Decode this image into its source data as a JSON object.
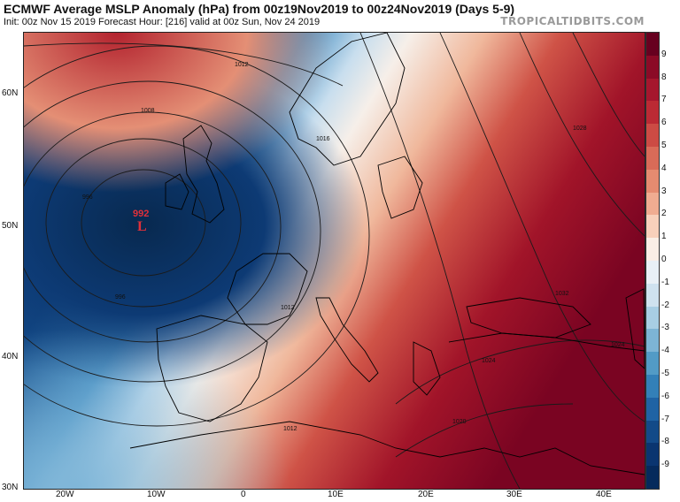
{
  "header": {
    "title": "ECMWF Average MSLP Anomaly (hPa) from 00z19Nov2019 to 00z24Nov2019 (Days 5-9)",
    "subtitle": "Init: 00z Nov 15 2019   Forecast Hour: [216]   valid at 00z Sun, Nov 24 2019",
    "brand": "TROPICALTIDBITS.COM"
  },
  "map": {
    "low_center": {
      "pressure": "992",
      "letter": "L"
    },
    "lat_labels": [
      "60N",
      "50N",
      "40N",
      "30N"
    ],
    "lon_labels": [
      "20W",
      "10W",
      "0",
      "10E",
      "20E",
      "30E",
      "40E"
    ],
    "isobar_labels": [
      "1012",
      "1008",
      "1016",
      "996",
      "996",
      "1012",
      "1012",
      "1032",
      "1024",
      "1020",
      "1028",
      "1024"
    ]
  },
  "colorbar": {
    "labels": [
      "9",
      "8",
      "7",
      "6",
      "5",
      "4",
      "3",
      "2",
      "1",
      "0",
      "-1",
      "-2",
      "-3",
      "-4",
      "-5",
      "-6",
      "-7",
      "-8",
      "-9"
    ],
    "colors": [
      "#67001f",
      "#8b0a26",
      "#a5162d",
      "#bb2a34",
      "#cc4b44",
      "#d96b58",
      "#e58b70",
      "#f0ac91",
      "#f8d0bb",
      "#faeee6",
      "#e9f0f6",
      "#cfe2ef",
      "#a8cee4",
      "#7db4d5",
      "#529bc6",
      "#3380b8",
      "#1f63a4",
      "#134a88",
      "#0a3570",
      "#052a5c"
    ]
  }
}
